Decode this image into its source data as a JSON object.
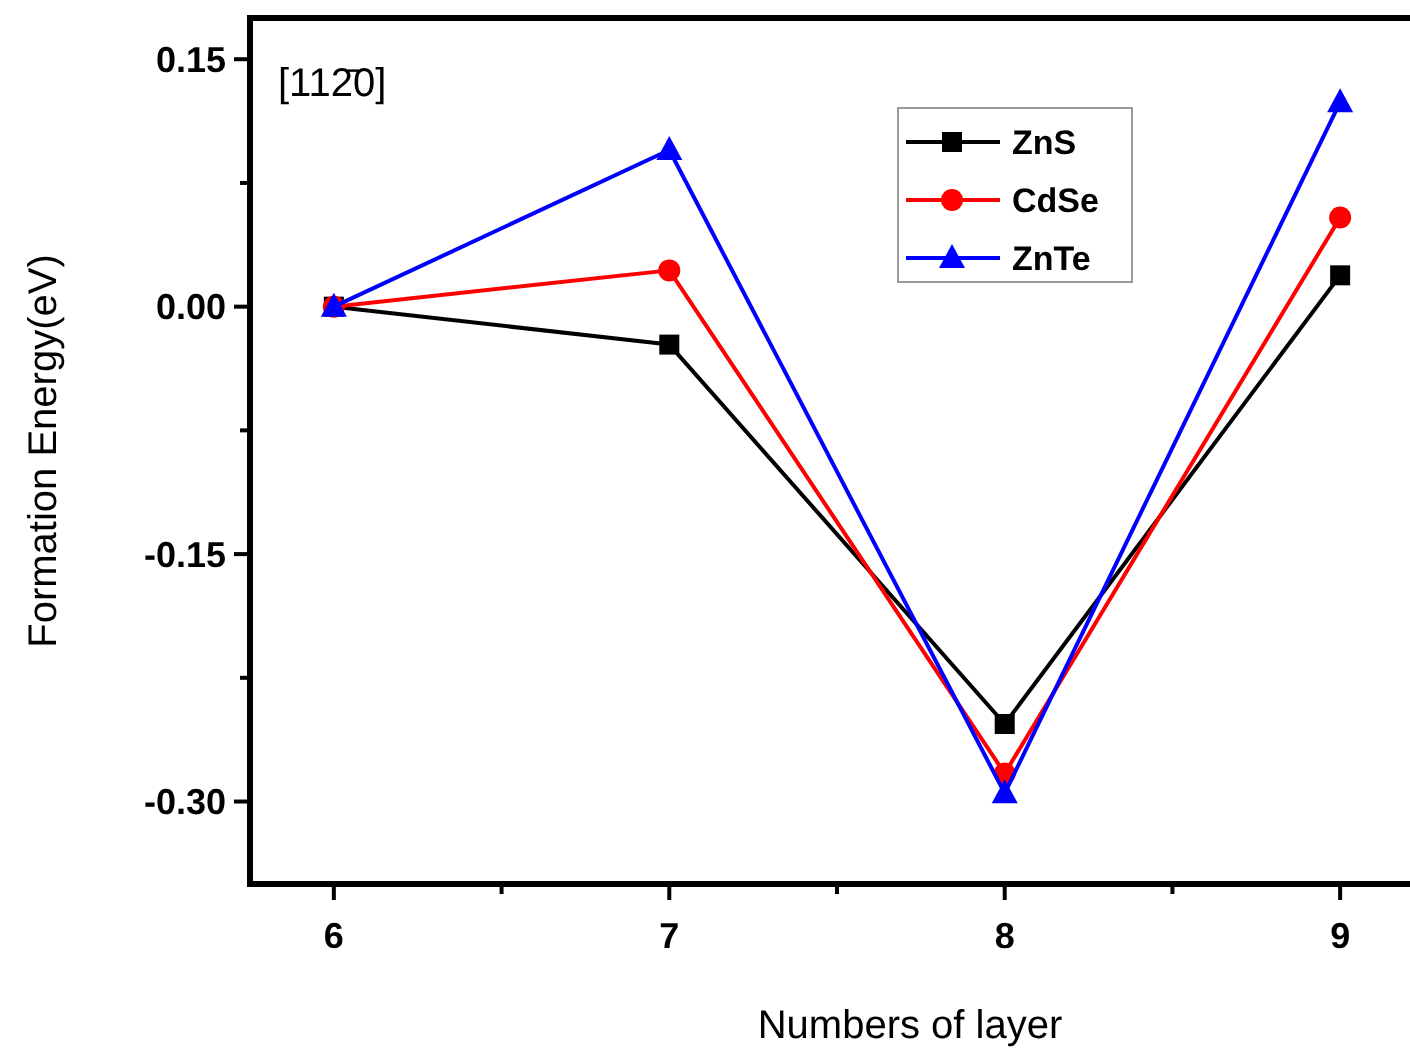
{
  "chart_data": {
    "type": "line",
    "xlabel": "Numbers of layer",
    "ylabel": "Formation Energy(eV)",
    "annotations": [
      "[112̄0]"
    ],
    "x": [
      6,
      7,
      8,
      9
    ],
    "series": [
      {
        "name": "ZnS",
        "color": "#000000",
        "marker": "square",
        "values": [
          0,
          -0.023,
          -0.253,
          0.019
        ]
      },
      {
        "name": "CdSe",
        "color": "#ff0000",
        "marker": "circle",
        "values": [
          0,
          0.022,
          -0.283,
          0.054
        ]
      },
      {
        "name": "ZnTe",
        "color": "#0000ff",
        "marker": "triangle",
        "values": [
          0,
          0.095,
          -0.295,
          0.124
        ]
      }
    ],
    "xlim": [
      5.75,
      9.25
    ],
    "xticks": [
      6,
      {
        "value": 6.5,
        "label": null
      },
      7,
      {
        "value": 7.5,
        "label": null
      },
      8,
      {
        "value": 8.5,
        "label": null
      },
      9
    ],
    "ylim": [
      -0.35,
      0.175
    ],
    "yticks": [
      {
        "value": -0.3,
        "label": "-0.30"
      },
      {
        "value": -0.225,
        "label": null
      },
      {
        "value": -0.15,
        "label": "-0.15"
      },
      {
        "value": -0.075,
        "label": null
      },
      {
        "value": 0,
        "label": "0.00"
      },
      {
        "value": 0.075,
        "label": null
      },
      {
        "value": 0.15,
        "label": "0.15"
      }
    ],
    "legend": "top right",
    "grid": false,
    "line_style": "solid"
  }
}
